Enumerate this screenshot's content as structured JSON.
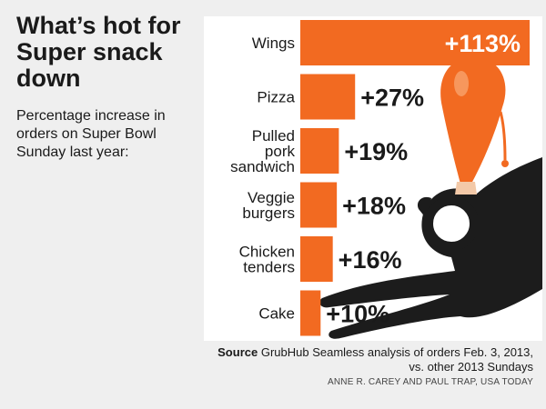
{
  "headline": "What’s hot for Super snack down",
  "chatter": "Percentage increase in orders on Super Bowl Sunday last year:",
  "source_label": "Source",
  "source_text": "GrubHub Seamless analysis of orders Feb. 3, 2013, vs. other 2013 Sundays",
  "credit": "ANNE R. CAREY AND PAUL TRAP, USA TODAY",
  "colors": {
    "bar": "#f26a21",
    "hand": "#1c1c1c",
    "background": "#efefef",
    "panel": "#ffffff"
  },
  "illustration": {
    "icon": "hand-holding-chicken-wing-icon"
  },
  "chart_data": {
    "type": "bar",
    "orientation": "horizontal",
    "categories": [
      [
        "Wings"
      ],
      [
        "Pizza"
      ],
      [
        "Pulled",
        "pork",
        "sandwich"
      ],
      [
        "Veggie",
        "burgers"
      ],
      [
        "Chicken",
        "tenders"
      ],
      [
        "Cake"
      ]
    ],
    "values": [
      113,
      27,
      19,
      18,
      16,
      10
    ],
    "value_labels": [
      "+113%",
      "+27%",
      "+19%",
      "+18%",
      "+16%",
      "+10%"
    ],
    "unit": "%",
    "xlim": [
      0,
      113
    ],
    "grid": false,
    "legend": "none"
  }
}
